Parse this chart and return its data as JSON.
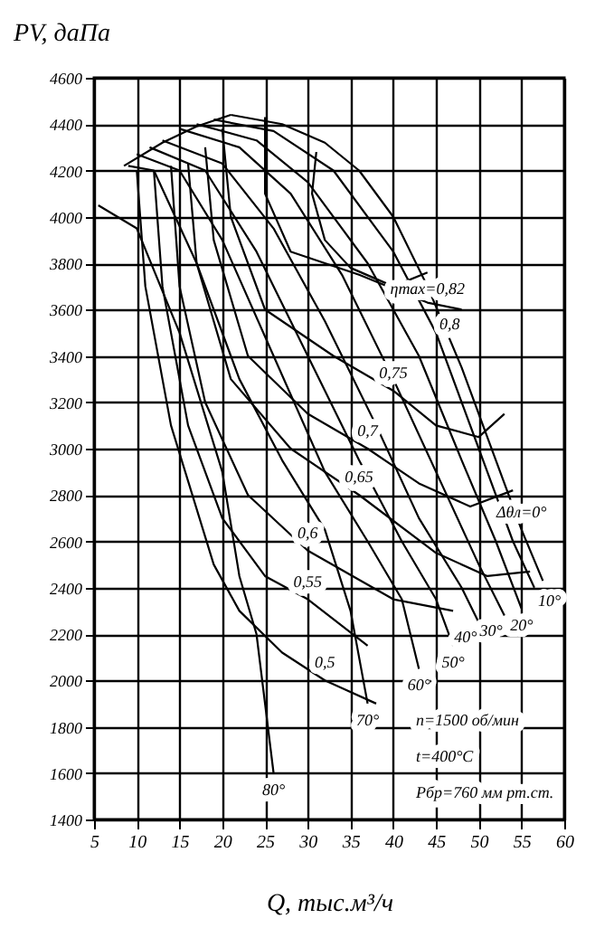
{
  "chart_data": {
    "type": "line",
    "xlabel": "Q, тыс.м³/ч",
    "ylabel": "PV, даПа",
    "xlim": [
      5,
      60
    ],
    "ylim": [
      1400,
      4600
    ],
    "xticks": [
      5,
      10,
      15,
      20,
      25,
      30,
      35,
      40,
      45,
      50,
      55,
      60
    ],
    "yticks": [
      1400,
      1600,
      1800,
      2000,
      2200,
      2400,
      2600,
      2800,
      3000,
      3200,
      3400,
      3600,
      3800,
      4000,
      4200,
      4400,
      4600
    ],
    "grid": true,
    "marker": "none",
    "line_style": "solid",
    "series": [
      {
        "color": "#000000",
        "x": [
          8.5,
          13,
          17,
          21
        ],
        "values": [
          4220,
          4320,
          4390,
          4440
        ]
      },
      {
        "color": "#000000",
        "x": [
          21,
          27,
          32,
          36,
          40,
          44,
          48,
          52,
          55,
          57.5
        ],
        "values": [
          4440,
          4400,
          4320,
          4200,
          4000,
          3700,
          3350,
          2950,
          2650,
          2430
        ]
      },
      {
        "color": "#000000",
        "x": [
          19,
          26,
          33,
          40,
          45,
          50,
          54,
          56.5
        ],
        "values": [
          4420,
          4370,
          4200,
          3850,
          3500,
          3000,
          2600,
          2400
        ]
      },
      {
        "color": "#000000",
        "x": [
          17,
          24,
          30,
          37,
          43,
          48,
          52,
          55
        ],
        "values": [
          4400,
          4330,
          4150,
          3800,
          3400,
          2950,
          2600,
          2310
        ]
      },
      {
        "color": "#000000",
        "x": [
          15,
          22,
          28,
          34,
          40,
          45,
          50,
          53
        ],
        "values": [
          4380,
          4300,
          4100,
          3750,
          3300,
          2900,
          2500,
          2280
        ]
      },
      {
        "color": "#000000",
        "x": [
          13,
          20,
          26,
          32,
          38,
          43,
          48,
          50
        ],
        "values": [
          4330,
          4230,
          3950,
          3550,
          3100,
          2700,
          2400,
          2250
        ]
      },
      {
        "color": "#000000",
        "x": [
          11.5,
          18,
          24,
          30,
          36,
          41,
          45,
          47
        ],
        "values": [
          4300,
          4200,
          3850,
          3400,
          2950,
          2600,
          2350,
          2150
        ]
      },
      {
        "color": "#000000",
        "x": [
          10,
          15,
          20,
          26,
          32,
          37,
          41,
          43
        ],
        "values": [
          4270,
          4200,
          3900,
          3400,
          2900,
          2600,
          2350,
          2050
        ]
      },
      {
        "color": "#000000",
        "x": [
          9,
          12,
          17,
          22,
          27,
          32,
          35,
          37
        ],
        "values": [
          4220,
          4200,
          3800,
          3300,
          2950,
          2650,
          2300,
          1900
        ]
      },
      {
        "color": "#000000",
        "x": [
          5.5,
          10,
          15,
          20,
          22,
          24,
          25,
          26
        ],
        "values": [
          4050,
          3950,
          3500,
          2900,
          2450,
          2200,
          1900,
          1600
        ]
      },
      {
        "color": "#000000",
        "x": [
          31,
          30.5,
          32,
          35,
          40,
          44
        ],
        "values": [
          4280,
          4100,
          3900,
          3780,
          3700,
          3760
        ]
      },
      {
        "color": "#000000",
        "x": [
          25,
          25,
          28,
          36,
          44,
          48
        ],
        "values": [
          4430,
          4100,
          3850,
          3750,
          3630,
          3600
        ]
      },
      {
        "color": "#000000",
        "x": [
          20,
          21,
          25,
          33,
          40,
          45,
          50,
          53
        ],
        "values": [
          4380,
          4000,
          3600,
          3400,
          3250,
          3100,
          3050,
          3150
        ]
      },
      {
        "color": "#000000",
        "x": [
          18,
          19,
          23,
          30,
          37,
          43,
          49,
          54
        ],
        "values": [
          4300,
          3900,
          3400,
          3150,
          3000,
          2850,
          2750,
          2820
        ]
      },
      {
        "color": "#000000",
        "x": [
          16,
          17,
          21,
          28,
          36,
          45,
          51,
          56
        ],
        "values": [
          4230,
          3800,
          3300,
          3000,
          2800,
          2550,
          2450,
          2470
        ]
      },
      {
        "color": "#000000",
        "x": [
          14,
          15,
          18,
          23,
          30,
          40,
          47
        ],
        "values": [
          4220,
          3700,
          3200,
          2800,
          2560,
          2350,
          2300
        ]
      },
      {
        "color": "#000000",
        "x": [
          12,
          13,
          16,
          20,
          25,
          30,
          37
        ],
        "values": [
          4200,
          3700,
          3100,
          2700,
          2450,
          2350,
          2150
        ]
      },
      {
        "color": "#000000",
        "x": [
          10,
          11,
          14,
          19,
          22,
          27,
          32,
          38
        ],
        "values": [
          4200,
          3700,
          3100,
          2500,
          2300,
          2120,
          2000,
          1900
        ]
      }
    ],
    "annotations": [
      {
        "text": "ηmax=0,82",
        "x": 44,
        "y": 3760
      },
      {
        "text": "0,8",
        "x": 48,
        "y": 3600
      },
      {
        "text": "0,75",
        "x": 40,
        "y": 3250
      },
      {
        "text": "0,7",
        "x": 37,
        "y": 3000
      },
      {
        "text": "0,65",
        "x": 36,
        "y": 2800
      },
      {
        "text": "0,6",
        "x": 30,
        "y": 2560
      },
      {
        "text": "0,55",
        "x": 30,
        "y": 2350
      },
      {
        "text": "0,5",
        "x": 32,
        "y": 2000
      },
      {
        "text": "Δθл=0°",
        "x": 55,
        "y": 2650
      },
      {
        "text": "10°",
        "x": 56.5,
        "y": 2400
      },
      {
        "text": "20°",
        "x": 55,
        "y": 2310
      },
      {
        "text": "30°",
        "x": 53,
        "y": 2280
      },
      {
        "text": "40°",
        "x": 50,
        "y": 2250
      },
      {
        "text": "50°",
        "x": 47,
        "y": 2150
      },
      {
        "text": "60°",
        "x": 43,
        "y": 2050
      },
      {
        "text": "70°",
        "x": 37,
        "y": 1900
      },
      {
        "text": "80°",
        "x": 26,
        "y": 1600
      },
      "n=1500 об/мин",
      "t=400°C",
      "Pбр=760 мм рт.ст."
    ]
  }
}
